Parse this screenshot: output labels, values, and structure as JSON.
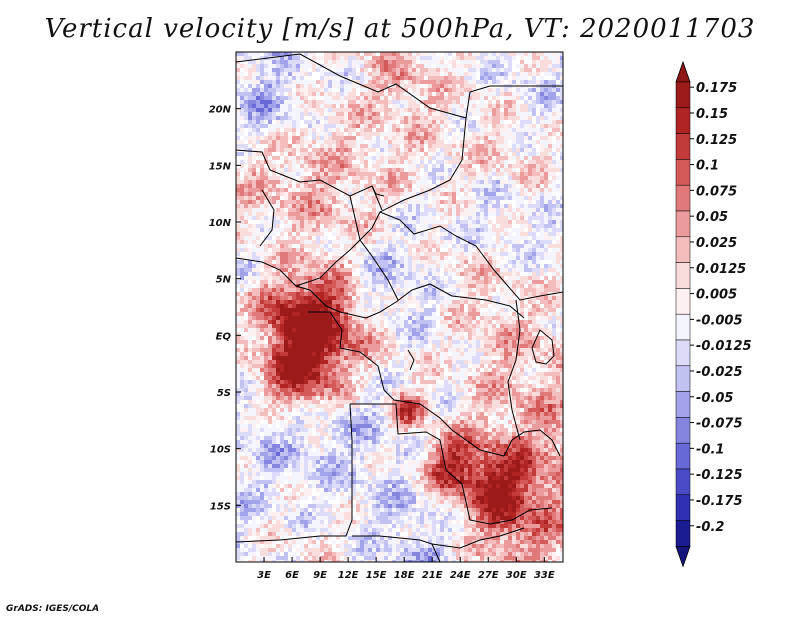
{
  "title": "Vertical velocity [m/s] at 500hPa, VT: 2020011703",
  "footer": "GrADS: IGES/COLA",
  "colors": {
    "frame": "#000000",
    "borders": "#000000"
  },
  "map": {
    "lon_range": [
      0,
      35
    ],
    "lat_range": [
      -20,
      25
    ],
    "lon_ticks": [
      "3E",
      "6E",
      "9E",
      "12E",
      "15E",
      "18E",
      "21E",
      "24E",
      "27E",
      "30E",
      "33E"
    ],
    "lat_ticks": [
      "20N",
      "15N",
      "10N",
      "5N",
      "EQ",
      "5S",
      "10S",
      "15S"
    ]
  },
  "colorbar": {
    "labels": [
      "0.175",
      "0.15",
      "0.125",
      "0.1",
      "0.075",
      "0.05",
      "0.025",
      "0.0125",
      "0.005",
      "-0.005",
      "-0.0125",
      "-0.025",
      "-0.05",
      "-0.075",
      "-0.1",
      "-0.125",
      "-0.175",
      "-0.2"
    ],
    "colors": [
      "#9b1b1b",
      "#b02424",
      "#c23a3a",
      "#d45a5a",
      "#e07a7a",
      "#eb9b9b",
      "#f3bdbd",
      "#f9dcdc",
      "#fdf0f0",
      "#f4f4fd",
      "#dcdcf8",
      "#c1c1f2",
      "#a2a2ea",
      "#8585e0",
      "#6868d6",
      "#4b4bc8",
      "#3030b4",
      "#1c1c92"
    ],
    "top_cap": "#8e1616",
    "bottom_cap": "#15157c"
  }
}
